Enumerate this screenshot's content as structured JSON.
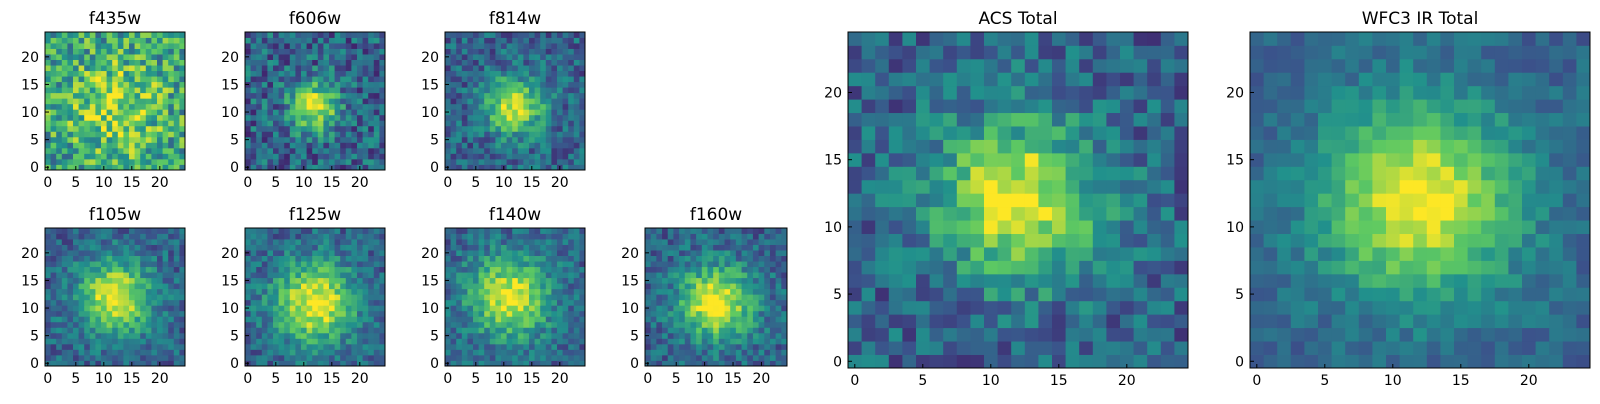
{
  "colormap": [
    "#440154",
    "#3b528b",
    "#21918c",
    "#5ec962",
    "#fde725"
  ],
  "chart_data": [
    {
      "type": "heatmap",
      "title": "f435w",
      "grid": 25,
      "xlim": [
        0,
        25
      ],
      "ylim": [
        0,
        25
      ],
      "xticks": [
        0,
        5,
        10,
        15,
        20
      ],
      "yticks": [
        0,
        5,
        10,
        15,
        20
      ],
      "center": [
        12,
        11
      ],
      "peak_level": 0.65,
      "sigma": 6,
      "noise": 0.28
    },
    {
      "type": "heatmap",
      "title": "f606w",
      "grid": 25,
      "xlim": [
        0,
        25
      ],
      "ylim": [
        0,
        25
      ],
      "xticks": [
        0,
        5,
        10,
        15,
        20
      ],
      "yticks": [
        0,
        5,
        10,
        15,
        20
      ],
      "center": [
        12,
        11
      ],
      "peak_level": 0.95,
      "sigma": 3,
      "noise": 0.22
    },
    {
      "type": "heatmap",
      "title": "f814w",
      "grid": 25,
      "xlim": [
        0,
        25
      ],
      "ylim": [
        0,
        25
      ],
      "xticks": [
        0,
        5,
        10,
        15,
        20
      ],
      "yticks": [
        0,
        5,
        10,
        15,
        20
      ],
      "center": [
        12,
        11
      ],
      "peak_level": 0.95,
      "sigma": 3.5,
      "noise": 0.18
    },
    {
      "type": "heatmap",
      "title": "f105w",
      "grid": 25,
      "xlim": [
        0,
        25
      ],
      "ylim": [
        0,
        25
      ],
      "xticks": [
        0,
        5,
        10,
        15,
        20
      ],
      "yticks": [
        0,
        5,
        10,
        15,
        20
      ],
      "center": [
        12,
        12
      ],
      "peak_level": 1.0,
      "sigma": 4.5,
      "noise": 0.16
    },
    {
      "type": "heatmap",
      "title": "f125w",
      "grid": 25,
      "xlim": [
        0,
        25
      ],
      "ylim": [
        0,
        25
      ],
      "xticks": [
        0,
        5,
        10,
        15,
        20
      ],
      "yticks": [
        0,
        5,
        10,
        15,
        20
      ],
      "center": [
        12,
        11
      ],
      "peak_level": 1.0,
      "sigma": 5,
      "noise": 0.16
    },
    {
      "type": "heatmap",
      "title": "f140w",
      "grid": 25,
      "xlim": [
        0,
        25
      ],
      "ylim": [
        0,
        25
      ],
      "xticks": [
        0,
        5,
        10,
        15,
        20
      ],
      "yticks": [
        0,
        5,
        10,
        15,
        20
      ],
      "center": [
        11,
        12
      ],
      "peak_level": 0.95,
      "sigma": 5,
      "noise": 0.16
    },
    {
      "type": "heatmap",
      "title": "f160w",
      "grid": 25,
      "xlim": [
        0,
        25
      ],
      "ylim": [
        0,
        25
      ],
      "xticks": [
        0,
        5,
        10,
        15,
        20
      ],
      "yticks": [
        0,
        5,
        10,
        15,
        20
      ],
      "center": [
        12,
        11
      ],
      "peak_level": 1.0,
      "sigma": 4.5,
      "noise": 0.16
    },
    {
      "type": "heatmap",
      "title": "ACS Total",
      "grid": 25,
      "xlim": [
        0,
        25
      ],
      "ylim": [
        0,
        25
      ],
      "xticks": [
        0,
        5,
        10,
        15,
        20
      ],
      "yticks": [
        0,
        5,
        10,
        15,
        20
      ],
      "center": [
        12,
        12
      ],
      "peak_level": 1.0,
      "sigma": 4,
      "noise": 0.18
    },
    {
      "type": "heatmap",
      "title": "WFC3 IR Total",
      "grid": 25,
      "xlim": [
        0,
        25
      ],
      "ylim": [
        0,
        25
      ],
      "xticks": [
        0,
        5,
        10,
        15,
        20
      ],
      "yticks": [
        0,
        5,
        10,
        15,
        20
      ],
      "center": [
        12,
        12
      ],
      "peak_level": 1.0,
      "sigma": 5,
      "noise": 0.1
    }
  ]
}
